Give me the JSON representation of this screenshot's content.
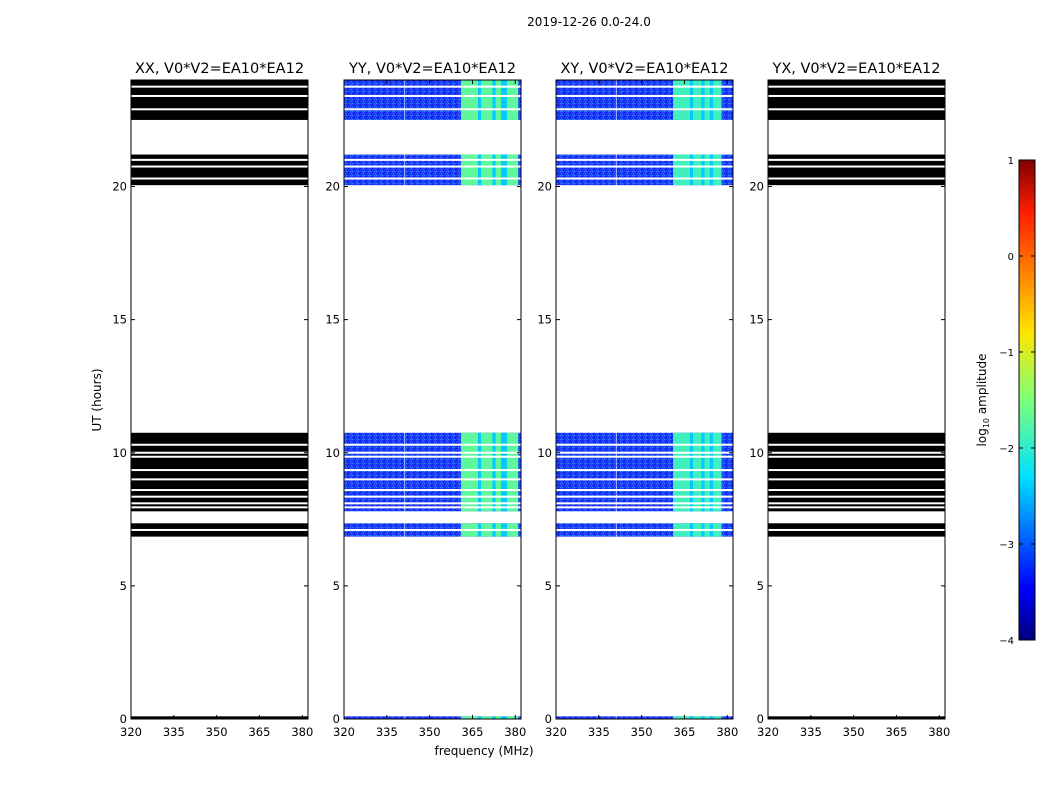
{
  "chart_data": {
    "type": "heatmap",
    "suptitle": "2019-12-26 0.0-24.0",
    "xlabel": "frequency (MHz)",
    "ylabel": "UT (hours)",
    "xlim": [
      320,
      382
    ],
    "ylim": [
      0,
      24
    ],
    "xticks": [
      320,
      335,
      350,
      365,
      380
    ],
    "yticks": [
      0,
      5,
      10,
      15,
      20
    ],
    "colorbar": {
      "label": "log10 amplitude",
      "label_prefix": "log",
      "label_sub": "10",
      "label_suffix": " amplitude",
      "range": [
        -4,
        1
      ],
      "ticks": [
        1,
        0,
        -1,
        -2,
        -3,
        -4
      ],
      "tick_labels": [
        "1",
        "0",
        "−1",
        "−2",
        "−3",
        "−4"
      ]
    },
    "data_bands_ut": [
      [
        0.0,
        0.1
      ],
      [
        6.85,
        7.35
      ],
      [
        7.8,
        10.75
      ],
      [
        20.05,
        21.2
      ],
      [
        22.5,
        24.0
      ]
    ],
    "gap_lines_ut": [
      7.1,
      7.95,
      8.1,
      8.35,
      8.6,
      9.0,
      9.35,
      9.85,
      10.0,
      10.3,
      20.3,
      20.75,
      21.0,
      22.9,
      23.4,
      23.75
    ],
    "panels": [
      {
        "name": "XX",
        "title": "XX, V0*V2=EA10*EA12",
        "fill": "black"
      },
      {
        "name": "YY",
        "title": "YY, V0*V2=EA10*EA12",
        "fill": "spectrum",
        "background_log_amplitude": -3.2,
        "bright_band_mhz": [
          361,
          381
        ],
        "bright_log_amplitude": -1.7,
        "bright_sub_bands_mhz": [
          [
            361,
            367
          ],
          [
            368,
            372
          ],
          [
            373,
            375
          ],
          [
            377,
            381
          ]
        ]
      },
      {
        "name": "XY",
        "title": "XY, V0*V2=EA10*EA12",
        "fill": "spectrum",
        "background_log_amplitude": -3.2,
        "bright_band_mhz": [
          361,
          378
        ],
        "bright_log_amplitude": -1.9,
        "bright_sub_bands_mhz": [
          [
            361,
            367
          ],
          [
            368,
            371
          ],
          [
            372,
            374
          ],
          [
            375,
            378
          ]
        ]
      },
      {
        "name": "YX",
        "title": "YX, V0*V2=EA10*EA12",
        "fill": "black"
      }
    ]
  }
}
